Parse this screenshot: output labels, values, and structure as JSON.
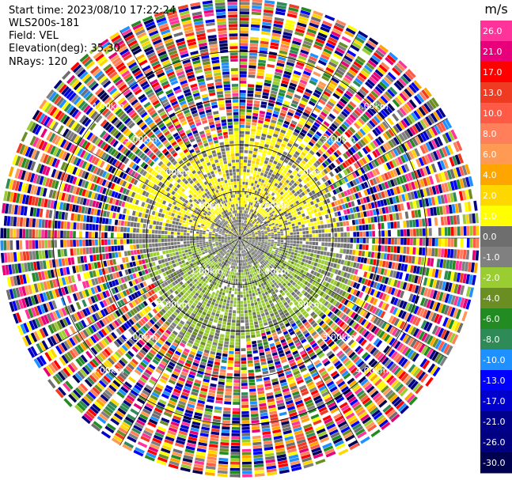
{
  "header": {
    "start_time": "Start time: 2023/08/10 17:22:24",
    "instrument": "WLS200s-181",
    "field": "Field: VEL",
    "elevation": "Elevation(deg): 35.30",
    "nrays": "NRays: 120"
  },
  "chart_data": {
    "type": "heatmap",
    "projection": "PPI (polar)",
    "n_rays": 120,
    "range_rings_km": [
      1,
      2,
      3,
      4
    ],
    "range_labels": [
      "1.00km",
      "2.00km",
      "3.00km",
      "4.00km"
    ],
    "colorbar": {
      "unit": "m/s",
      "levels": [
        26.0,
        21.0,
        17.0,
        13.0,
        10.0,
        8.0,
        6.0,
        4.0,
        2.0,
        1.0,
        0.0,
        -1.0,
        -2.0,
        -4.0,
        -6.0,
        -8.0,
        -10.0,
        -13.0,
        -17.0,
        -21.0,
        -26.0,
        -30.0
      ],
      "labels": [
        "26.0",
        "21.0",
        "17.0",
        "13.0",
        "10.0",
        "8.0",
        "6.0",
        "4.0",
        "2.0",
        "1.0",
        "0.0",
        "-1.0",
        "-2.0",
        "-4.0",
        "-6.0",
        "-8.0",
        "-10.0",
        "-13.0",
        "-17.0",
        "-21.0",
        "-26.0",
        "-30.0"
      ],
      "colors": [
        "#ff3399",
        "#e8007a",
        "#ff0000",
        "#ee3b21",
        "#ff5a45",
        "#ff7f5a",
        "#ff9a55",
        "#ffa500",
        "#ffd700",
        "#ffff00",
        "#6e6e6e",
        "#808080",
        "#9acd32",
        "#6b8e23",
        "#228b22",
        "#2e8b57",
        "#1e90ff",
        "#0000ff",
        "#0000cd",
        "#00008b",
        "#000080",
        "#000050"
      ]
    }
  }
}
